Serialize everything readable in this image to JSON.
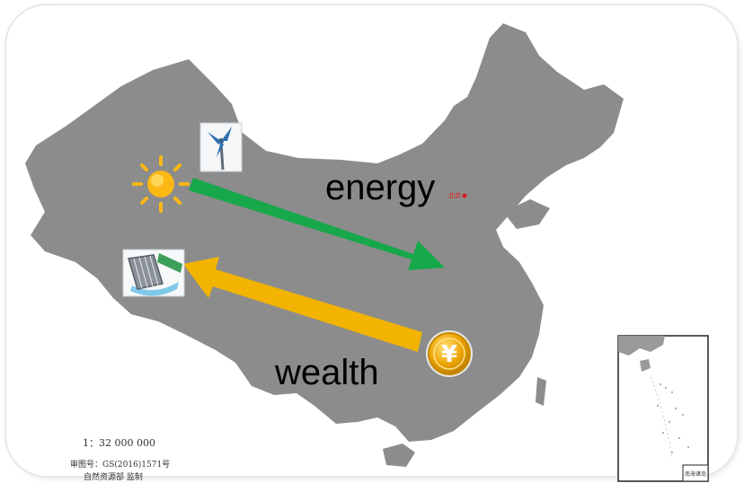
{
  "labels": {
    "energy": "energy",
    "wealth": "wealth",
    "capital": "北京"
  },
  "map_info": {
    "scale": "1：32 000 000",
    "review_number": "审图号：GS(2016)1571号",
    "supervisor": "自然资源部 监制",
    "inset_caption": "南海诸岛"
  },
  "icons": {
    "sun": "sun-icon",
    "wind_turbine": "wind-turbine-icon",
    "solar_panel": "solar-panel-icon",
    "yuan_coin": "yuan-coin-icon",
    "yuan_symbol": "¥"
  },
  "arrows": {
    "energy": {
      "from": "west",
      "to": "east",
      "color": "#16a84a"
    },
    "wealth": {
      "from": "east",
      "to": "west",
      "color": "#f2b400"
    }
  },
  "colors": {
    "land": "#8c8c8c",
    "frame": "#eef0f3",
    "energy_arrow": "#16a84a",
    "wealth_arrow": "#f2b400",
    "sun": "#fcb814",
    "coin": "#efa806",
    "capital_star": "#e01b1b"
  }
}
